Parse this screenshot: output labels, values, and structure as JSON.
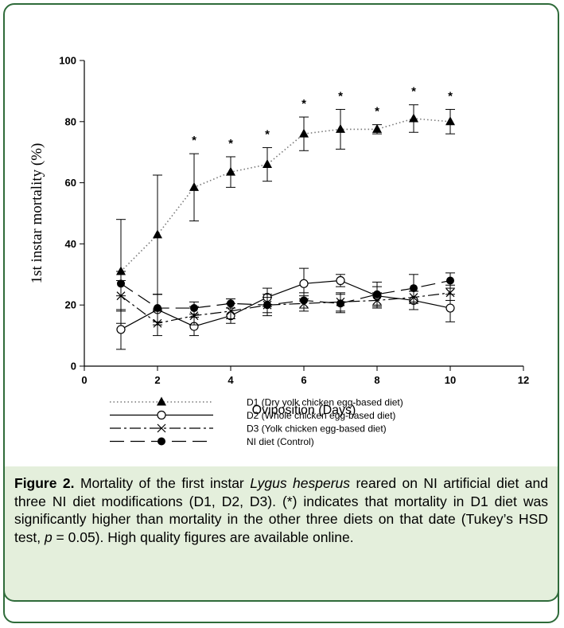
{
  "chart_data": {
    "type": "line",
    "xlabel": "Oviposition (Days)",
    "ylabel": "1st instar mortality (%)",
    "xlim": [
      0,
      12
    ],
    "ylim": [
      0,
      100
    ],
    "xticks": [
      0,
      2,
      4,
      6,
      8,
      10,
      12
    ],
    "yticks": [
      0,
      20,
      40,
      60,
      80,
      100
    ],
    "grid": false,
    "legend_position": "bottom",
    "x": [
      1,
      2,
      3,
      4,
      5,
      6,
      7,
      8,
      9,
      10
    ],
    "series": [
      {
        "name": "D1 (Dry yolk chicken egg-based diet)",
        "marker": "filled-triangle",
        "line_style": "dotted",
        "values": [
          31,
          43,
          58.5,
          63.5,
          66,
          76,
          77.5,
          77.5,
          81,
          80
        ],
        "error": [
          17,
          19.5,
          11,
          5,
          5.5,
          5.5,
          6.5,
          1.5,
          4.5,
          4
        ]
      },
      {
        "name": "D2 (Whole chicken egg-based diet)",
        "marker": "open-circle",
        "line_style": "solid",
        "values": [
          12,
          18.5,
          13,
          16.5,
          22.5,
          27,
          28,
          23,
          21.5,
          19
        ],
        "error": [
          6.5,
          5,
          3,
          2.5,
          3,
          5,
          2,
          3,
          3,
          4.5
        ]
      },
      {
        "name": "D3 (Yolk chicken egg-based diet)",
        "marker": "x-cross",
        "line_style": "dash-dot",
        "values": [
          23,
          14,
          16.5,
          18,
          20,
          20.5,
          21,
          21.5,
          22.5,
          24
        ],
        "error": [
          5,
          4,
          3,
          2.5,
          2.5,
          2.5,
          3,
          2.5,
          2,
          2.5
        ]
      },
      {
        "name": "NI diet (Control)",
        "marker": "filled-circle",
        "line_style": "long-dash",
        "values": [
          27,
          19,
          19,
          20.5,
          20,
          21.5,
          20.5,
          23.5,
          25.5,
          28
        ],
        "error": [
          4,
          4.5,
          2,
          1.5,
          3.5,
          2.5,
          3,
          4,
          4.5,
          2.5
        ]
      }
    ],
    "significance_marker": "*",
    "significant_days": [
      3,
      4,
      5,
      6,
      7,
      8,
      9,
      10
    ]
  },
  "caption": {
    "label": "Figure 2.",
    "text_1": " Mortality of the first instar ",
    "species": "Lygus hesperus",
    "text_2": " reared on NI artificial diet and three NI diet modifications (D1, D2, D3). (*) indicates that mortality in D1 diet was significantly higher than mortality in the other three diets on that date (Tukey’s HSD test, ",
    "p_symbol": "p",
    "text_3": " = 0.05). High quality figures are available online."
  },
  "colors": {
    "frame_border": "#2f6b3a",
    "caption_background": "#e4efdc",
    "line": "#000000"
  }
}
